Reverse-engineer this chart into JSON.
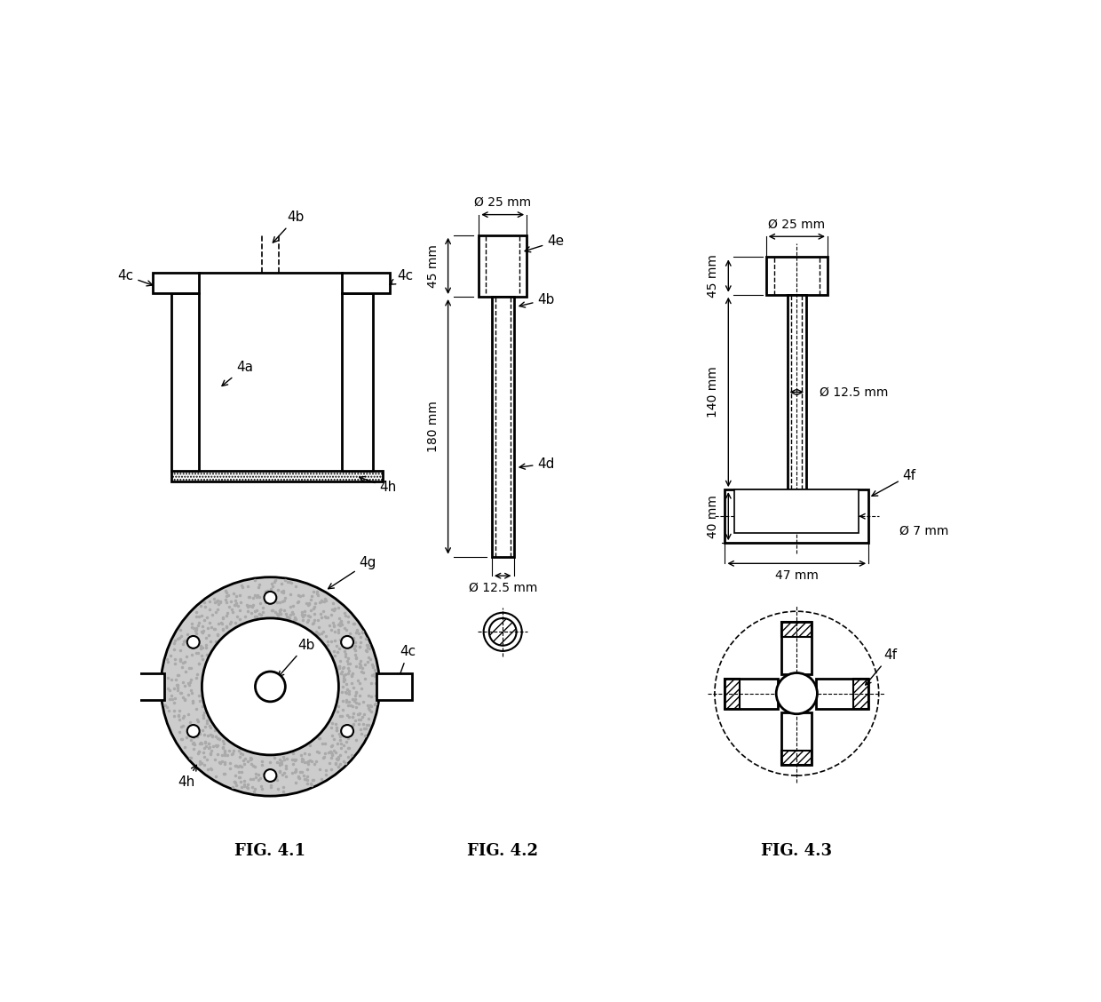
{
  "bg_color": "#ffffff",
  "line_color": "#000000",
  "fig_labels": [
    "FIG. 4.1",
    "FIG. 4.2",
    "FIG. 4.3"
  ],
  "fig_label_fontsize": 13,
  "annotation_fontsize": 11,
  "dim_fontsize": 10
}
